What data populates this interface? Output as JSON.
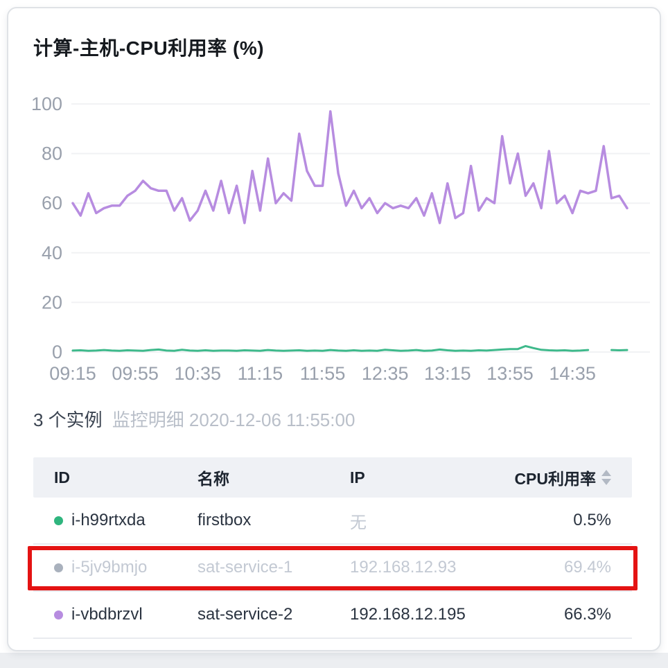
{
  "page": {
    "title": "计算-主机-CPU利用率 (%)"
  },
  "summary": {
    "count_text": "3 个实例",
    "detail_text": "监控明细 2020-12-06 11:55:00"
  },
  "chart_data": {
    "type": "line",
    "title": "计算-主机-CPU利用率 (%)",
    "xlabel": "",
    "ylabel": "CPU利用率 (%)",
    "ylim": [
      0,
      100
    ],
    "y_ticks": [
      0,
      20,
      40,
      60,
      80,
      100
    ],
    "x_tick_labels": [
      "09:15",
      "09:55",
      "10:35",
      "11:15",
      "11:55",
      "12:35",
      "13:15",
      "13:55",
      "14:35"
    ],
    "points_per_tick": 8,
    "grid": "horizontal",
    "legend_position": "none",
    "series": [
      {
        "name": "sat-service-2",
        "color": "#b78ce0",
        "stroke_width": 3.5,
        "values": [
          60,
          55,
          64,
          56,
          58,
          59,
          59,
          63,
          65,
          69,
          66,
          65,
          65,
          57,
          62,
          53,
          57,
          65,
          57,
          69,
          56,
          67,
          52,
          73,
          57,
          78,
          60,
          64,
          61,
          88,
          73,
          67,
          67,
          97,
          72,
          59,
          65,
          58,
          62,
          56,
          60,
          58,
          59,
          58,
          62,
          55,
          64,
          52,
          68,
          54,
          56,
          75,
          57,
          62,
          60,
          87,
          68,
          80,
          63,
          68,
          58,
          81,
          60,
          63,
          56,
          65,
          64,
          65,
          83,
          62,
          63,
          58
        ]
      },
      {
        "name": "firstbox",
        "color": "#3eb98b",
        "stroke_width": 3,
        "values": [
          0.6,
          0.7,
          0.5,
          0.6,
          0.8,
          0.6,
          0.5,
          0.7,
          0.6,
          0.5,
          0.8,
          1.0,
          0.6,
          0.5,
          0.9,
          0.6,
          0.5,
          0.7,
          0.5,
          0.6,
          0.6,
          0.5,
          0.7,
          0.6,
          0.5,
          0.8,
          0.6,
          0.5,
          0.6,
          0.7,
          0.5,
          0.6,
          0.5,
          0.8,
          0.6,
          0.5,
          0.7,
          0.5,
          0.6,
          0.5,
          0.9,
          0.7,
          0.5,
          0.6,
          0.8,
          0.5,
          0.6,
          1.0,
          0.7,
          0.5,
          0.6,
          0.5,
          0.7,
          0.6,
          0.8,
          1.0,
          1.2,
          1.2,
          2.4,
          1.6,
          0.9,
          0.7,
          0.6,
          0.7,
          0.5,
          0.6,
          0.8,
          null,
          null,
          0.8,
          0.7,
          0.8
        ]
      }
    ]
  },
  "table": {
    "headers": [
      "ID",
      "名称",
      "IP",
      "CPU利用率"
    ],
    "sorted_column": "CPU利用率",
    "highlight_color": "#e41313",
    "rows": [
      {
        "dot_color": "#2fb57e",
        "id": "i-h99rtxda",
        "name": "firstbox",
        "ip": "无",
        "cpu": "0.5%"
      },
      {
        "dot_color": "#a9b1bd",
        "id": "i-5jv9bmjo",
        "name": "sat-service-1",
        "ip": "192.168.12.93",
        "cpu": "69.4%"
      },
      {
        "dot_color": "#b78ce0",
        "id": "i-vbdbrzvl",
        "name": "sat-service-2",
        "ip": "192.168.12.195",
        "cpu": "66.3%"
      }
    ]
  }
}
